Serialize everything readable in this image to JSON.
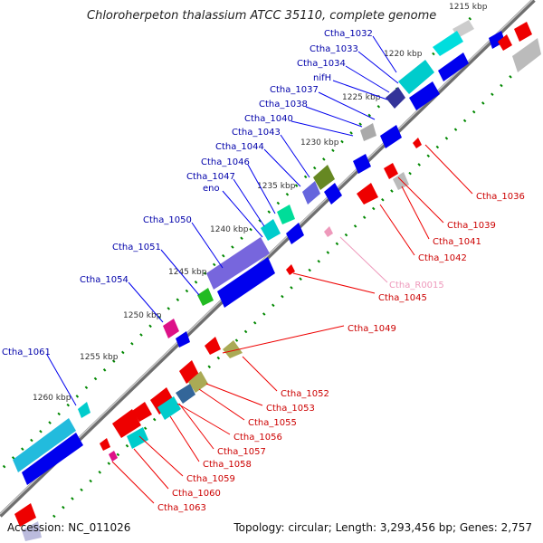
{
  "title": "Chloroherpeton thalassium ATCC 35110, complete genome",
  "footer": {
    "accession": "Accession: NC_011026",
    "topology": "Topology: circular; Length: 3,293,456 bp; Genes: 2,757"
  },
  "colors": {
    "forward_strand": "#0000ee",
    "reverse_strand": "#ee0000",
    "rna": "#ee66aa",
    "backbone": "#777777",
    "tick": "#00aa00"
  },
  "scale_labels": [
    "1215 kbp",
    "1220 kbp",
    "1225 kbp",
    "1230 kbp",
    "1235 kbp",
    "1240 kbp",
    "1245 kbp",
    "1250 kbp",
    "1255 kbp",
    "1260 kbp"
  ],
  "upper_labels": [
    "Ctha_1032",
    "Ctha_1033",
    "Ctha_1034",
    "nifH",
    "Ctha_1037",
    "Ctha_1038",
    "Ctha_1040",
    "Ctha_1043",
    "Ctha_1044",
    "Ctha_1046",
    "Ctha_1047",
    "eno",
    "Ctha_1050",
    "Ctha_1051",
    "Ctha_1054",
    "Ctha_1061"
  ],
  "lower_labels": [
    "Ctha_1036",
    "Ctha_1039",
    "Ctha_1041",
    "Ctha_1042",
    "Ctha_R0015",
    "Ctha_1045",
    "Ctha_1049",
    "Ctha_1052",
    "Ctha_1053",
    "Ctha_1055",
    "Ctha_1056",
    "Ctha_1057",
    "Ctha_1058",
    "Ctha_1059",
    "Ctha_1060",
    "Ctha_1063"
  ]
}
